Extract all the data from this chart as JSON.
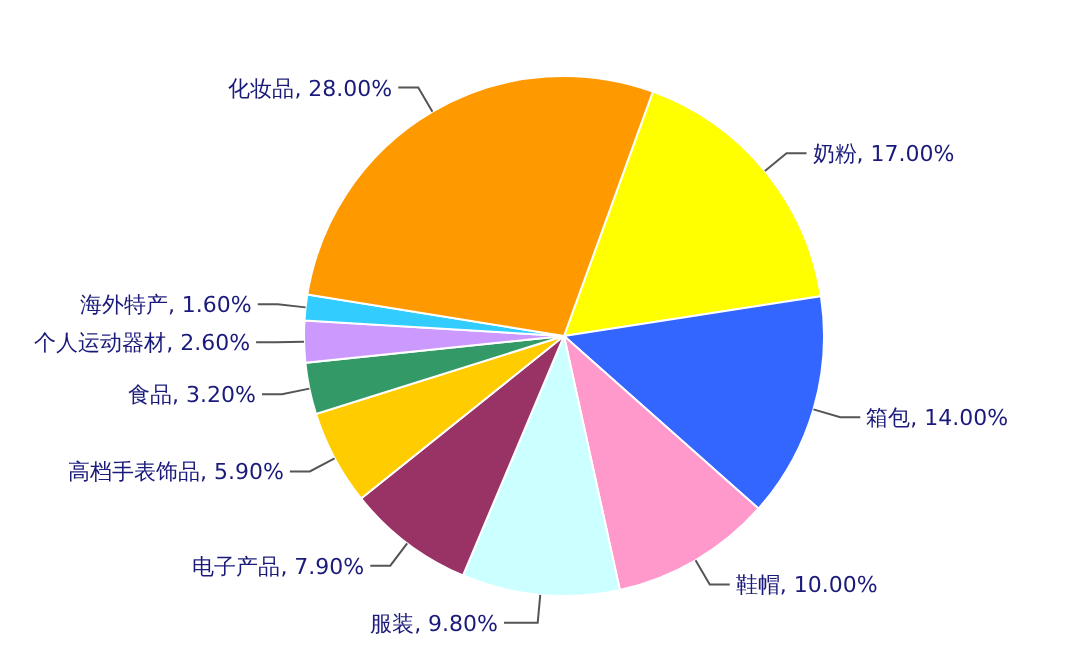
{
  "chart_data": {
    "type": "pie",
    "categories": [
      "奶粉",
      "箱包",
      "鞋帽",
      "服装",
      "电子产品",
      "高档手表饰品",
      "食品",
      "个人运动器材",
      "海外特产",
      "化妆品"
    ],
    "values": [
      17.0,
      14.0,
      10.0,
      9.8,
      7.9,
      5.9,
      3.2,
      2.6,
      1.6,
      28.0
    ],
    "value_labels": [
      "17.00%",
      "14.00%",
      "10.00%",
      "9.80%",
      "7.90%",
      "5.90%",
      "3.20%",
      "2.60%",
      "1.60%",
      "28.00%"
    ],
    "colors": [
      "#ffff00",
      "#3366ff",
      "#ff99cc",
      "#ccffff",
      "#993366",
      "#ffcc00",
      "#339966",
      "#cc99ff",
      "#33ccff",
      "#ff9900"
    ]
  }
}
